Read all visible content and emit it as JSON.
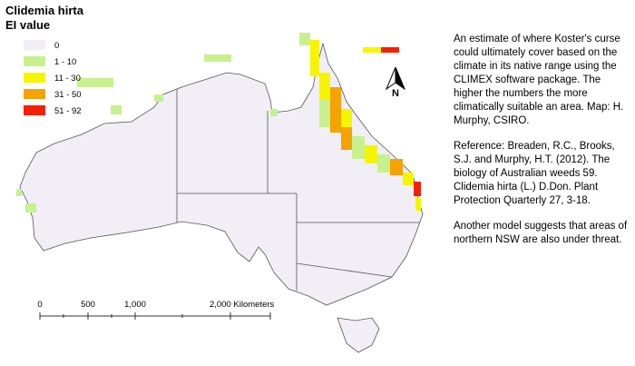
{
  "header": {
    "title": "Clidemia hirta",
    "subtitle": "EI value"
  },
  "legend": {
    "items": [
      {
        "label": "0",
        "color": "#f1eff5"
      },
      {
        "label": "1 - 10",
        "color": "#c8f08f"
      },
      {
        "label": "11 - 30",
        "color": "#f5f500"
      },
      {
        "label": "31 - 50",
        "color": "#f5a300"
      },
      {
        "label": "51 - 92",
        "color": "#f52000"
      }
    ]
  },
  "scale_bar": {
    "labels": [
      "0",
      "500",
      "1,000",
      "2,000 Kilometers"
    ]
  },
  "north_arrow": {
    "label": "N"
  },
  "description": {
    "paragraphs": [
      "An estimate of where Koster's curse could ultimately cover based on the climate in its native range using the CLIMEX software package. The higher the numbers the more climatically suitable an area. Map: H. Murphy, CSIRO.",
      "Reference: Breaden, R.C., Brooks, S.J. and Murphy, H.T. (2012). The biology of Australian weeds 59. Clidemia hirta (L.) D.Don. Plant Protection Quarterly 27, 3-18.",
      "Another model suggests that areas of northern NSW are also under threat."
    ]
  }
}
